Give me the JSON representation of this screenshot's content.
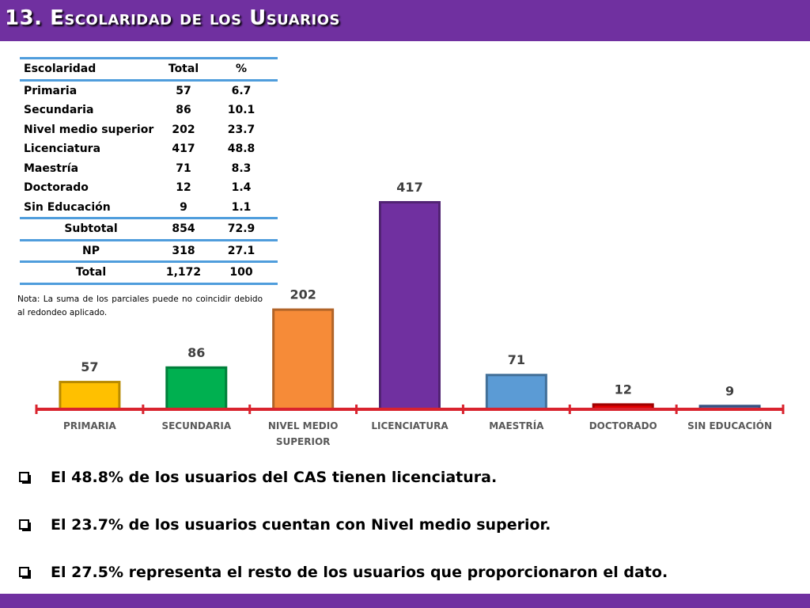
{
  "header": {
    "title": "13. Escolaridad de los Usuarios"
  },
  "table": {
    "columns": [
      "Escolaridad",
      "Total",
      "%"
    ],
    "rows": [
      [
        "Primaria",
        "57",
        "6.7"
      ],
      [
        "Secundaria",
        "86",
        "10.1"
      ],
      [
        "Nivel medio superior",
        "202",
        "23.7"
      ],
      [
        "Licenciatura",
        "417",
        "48.8"
      ],
      [
        "Maestría",
        "71",
        "8.3"
      ],
      [
        "Doctorado",
        "12",
        "1.4"
      ],
      [
        "Sin Educación",
        "9",
        "1.1"
      ]
    ],
    "subtotal": [
      "Subtotal",
      "854",
      "72.9"
    ],
    "np": [
      "NP",
      "318",
      "27.1"
    ],
    "total": [
      "Total",
      "1,172",
      "100"
    ]
  },
  "note": "Nota: La suma de los parciales puede no coincidir debido al redondeo aplicado.",
  "chart_data": {
    "type": "bar",
    "categories": [
      "PRIMARIA",
      "SECUNDARIA",
      "NIVEL MEDIO SUPERIOR",
      "LICENCIATURA",
      "MAESTRÍA",
      "DOCTORADO",
      "SIN EDUCACIÓN"
    ],
    "values": [
      57,
      86,
      202,
      417,
      71,
      12,
      9
    ],
    "colors": [
      "#ffc000",
      "#00b050",
      "#f68b38",
      "#7030a0",
      "#5b9bd5",
      "#e00000",
      "#4a6fb0"
    ],
    "title": "",
    "xlabel": "",
    "ylabel": "",
    "ylim": [
      0,
      417
    ],
    "axis_color": "#d9232e"
  },
  "bullets": [
    "El 48.8% de los usuarios del CAS tienen licenciatura.",
    "El 23.7% de los usuarios cuentan con Nivel medio superior.",
    "El  27.5% representa el resto de los usuarios que proporcionaron el dato."
  ],
  "colors": {
    "title_bar": "#7030a0",
    "table_rule": "#4f9ddc"
  }
}
